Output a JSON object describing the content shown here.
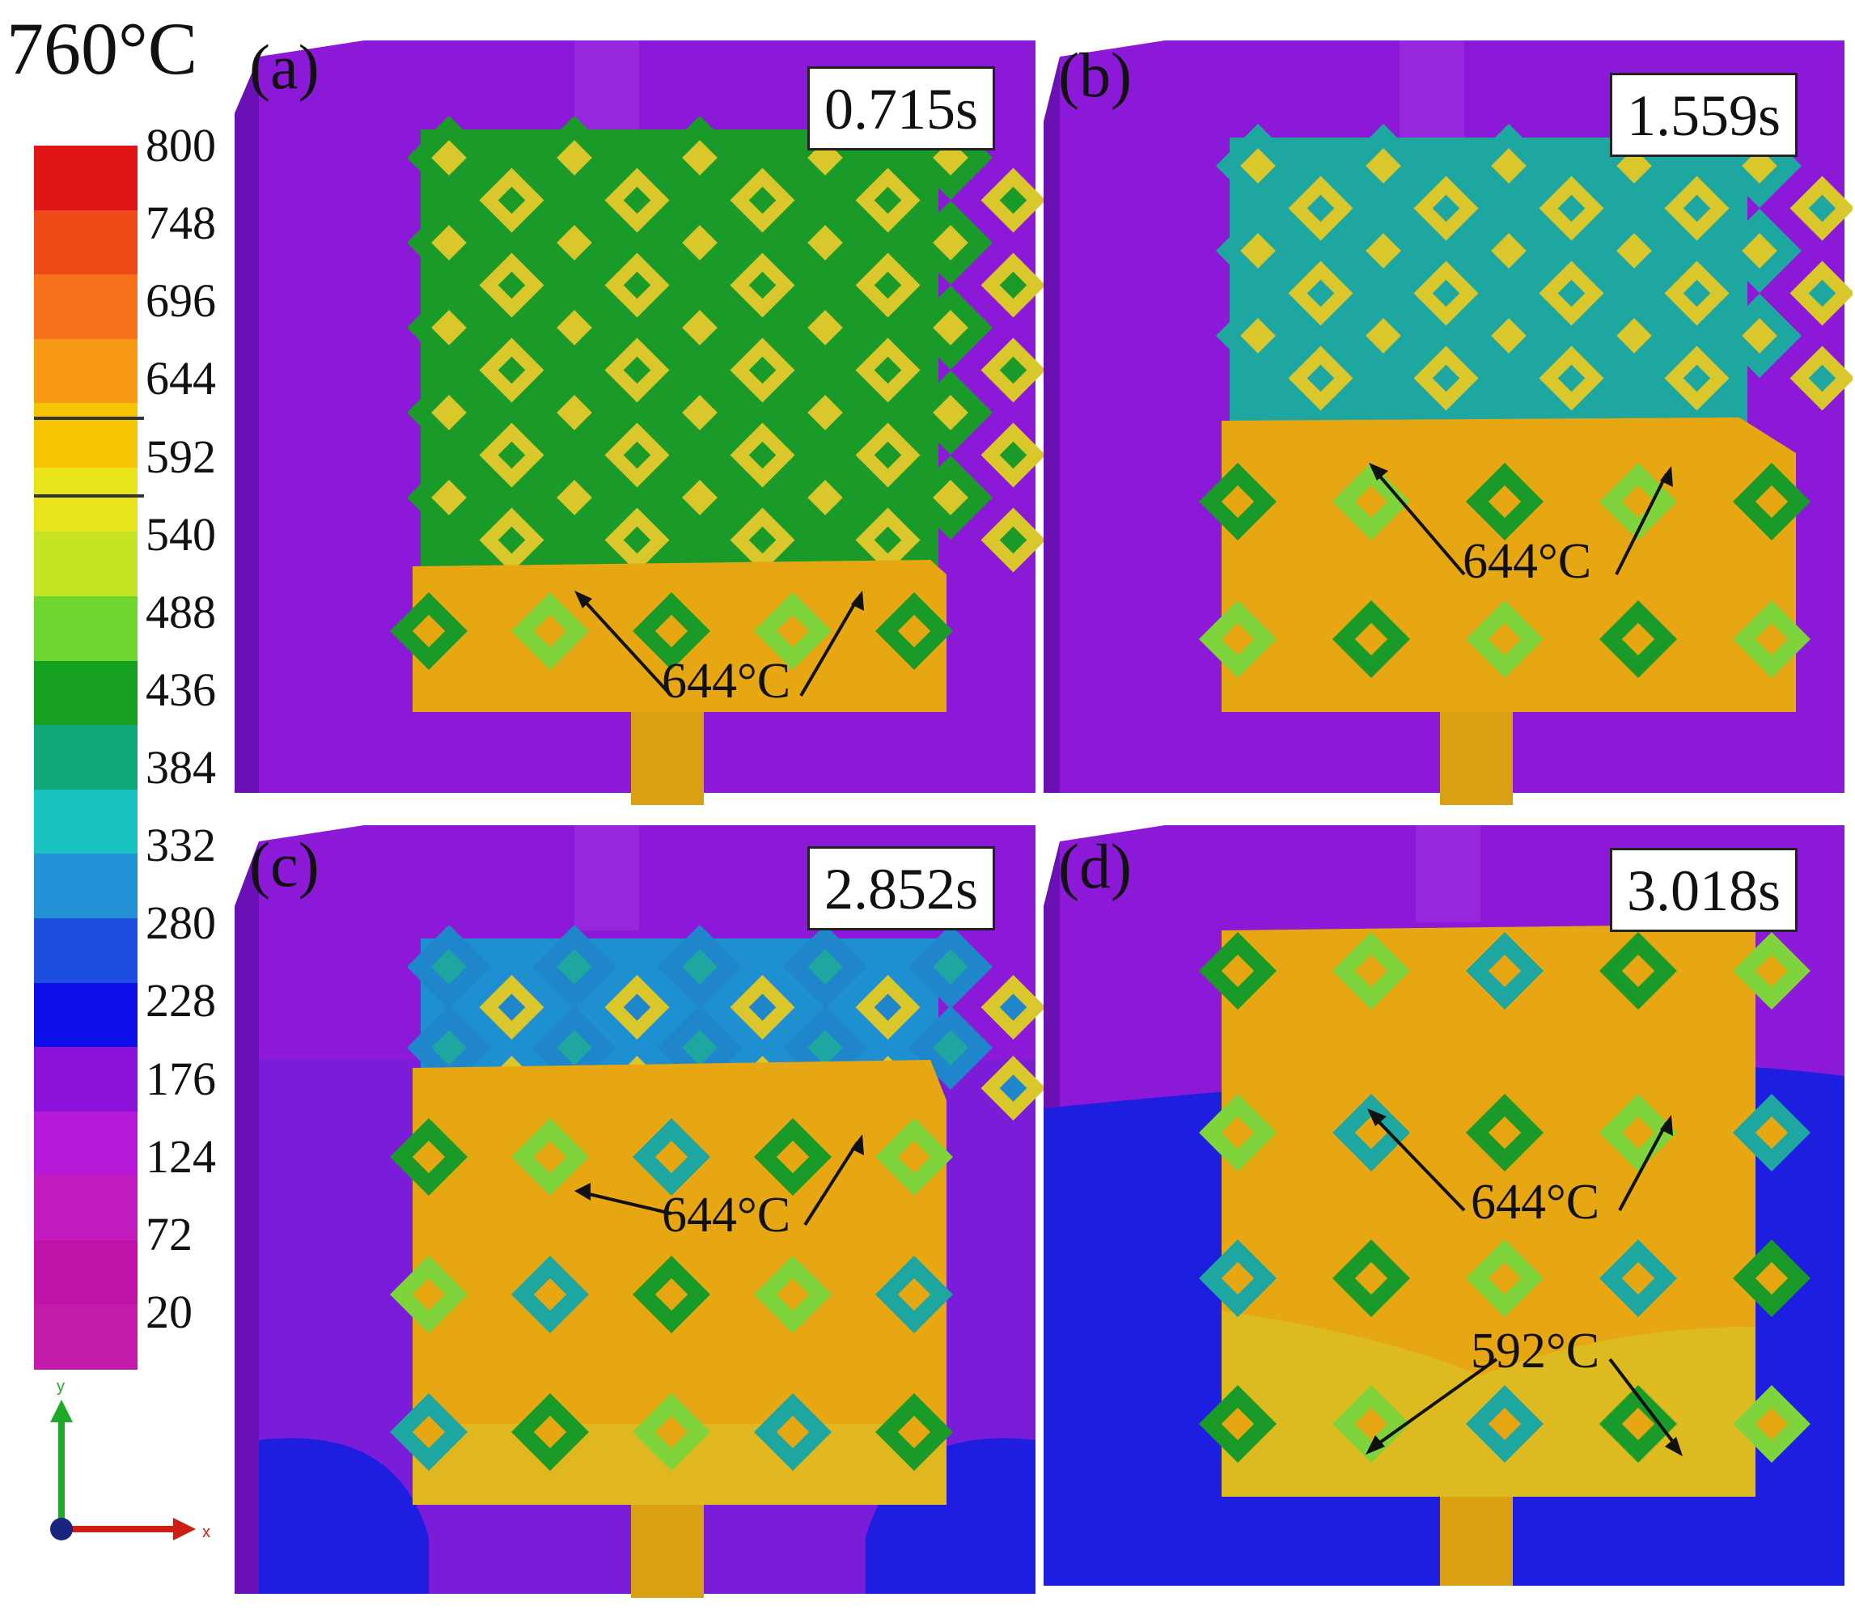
{
  "header": {
    "pour_temperature": "760°C"
  },
  "legend": {
    "ticks": [
      "800",
      "748",
      "696",
      "644",
      "592",
      "540",
      "488",
      "436",
      "384",
      "332",
      "280",
      "228",
      "176",
      "124",
      "72",
      "20"
    ],
    "band_colors": [
      "#e01515",
      "#ee4a18",
      "#f7701a",
      "#f99a16",
      "#f6c400",
      "#e9e41a",
      "#c4e323",
      "#6ed62f",
      "#16a022",
      "#10a77a",
      "#18c2c0",
      "#2391d6",
      "#1c4fe0",
      "#0b0ee6",
      "#8a12d8",
      "#b61ad8",
      "#c21cc0",
      "#c011a8",
      "#c21ba9"
    ],
    "highlight_lines": [
      "592",
      "540"
    ]
  },
  "axes_triad": {
    "y_label": "y",
    "x_label": "x",
    "y_color": "#1faa2a",
    "x_color": "#cc1e12",
    "origin_color": "#1a237e"
  },
  "colors": {
    "casting": "#e6a712",
    "mold": "#8c18d8",
    "mold_side": "#6a10b4",
    "cold_mold": "#1e1ee0",
    "lattice_green": "#1a9a28",
    "lattice_light": "#7ed43a",
    "lattice_yellow": "#d9c72c",
    "lattice_teal": "#1ea7a0"
  },
  "panels": [
    {
      "id": "a",
      "letter": "(a)",
      "time": "0.715s",
      "annotations": [
        "644°C"
      ]
    },
    {
      "id": "b",
      "letter": "(b)",
      "time": "1.559s",
      "annotations": [
        "644°C"
      ]
    },
    {
      "id": "c",
      "letter": "(c)",
      "time": "2.852s",
      "annotations": [
        "644°C"
      ]
    },
    {
      "id": "d",
      "letter": "(d)",
      "time": "3.018s",
      "annotations": [
        "644°C",
        "592°C"
      ]
    }
  ]
}
